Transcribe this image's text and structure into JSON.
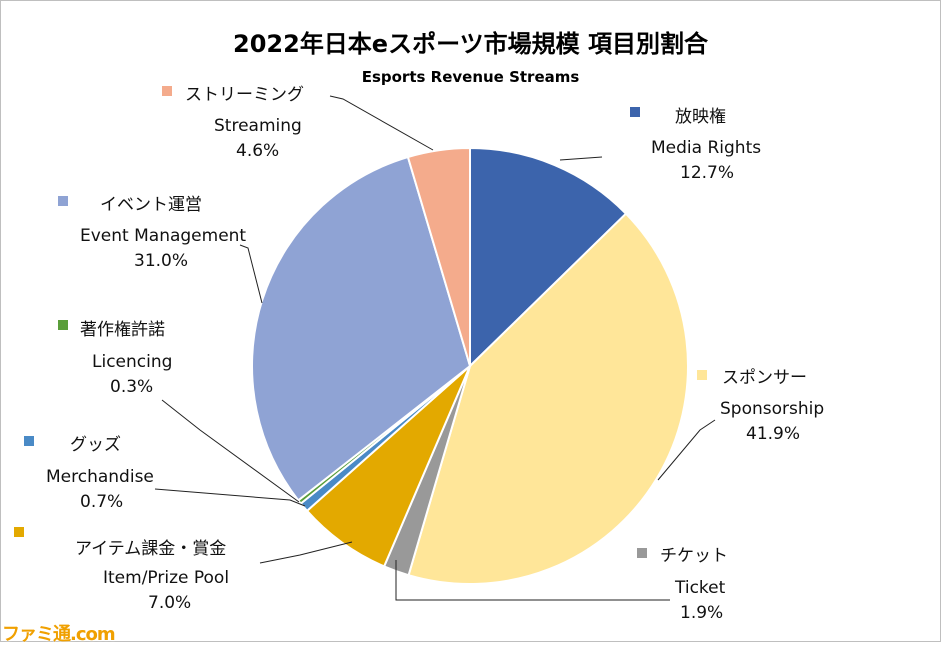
{
  "chart_data": {
    "type": "pie",
    "title": "2022年日本eスポーツ市場規模 項目別割合",
    "subtitle": "Esports Revenue Streams",
    "slices": [
      {
        "jp": "放映権",
        "en": "Media Rights",
        "value": 12.7,
        "pct_label": "12.7%",
        "color": "#3c64ac"
      },
      {
        "jp": "スポンサー",
        "en": "Sponsorship",
        "value": 41.9,
        "pct_label": "41.9%",
        "color": "#ffe699"
      },
      {
        "jp": "チケット",
        "en": "Ticket",
        "value": 1.9,
        "pct_label": "1.9%",
        "color": "#999999"
      },
      {
        "jp": "アイテム課金・賞金",
        "en": "Item/Prize Pool",
        "value": 7.0,
        "pct_label": "7.0%",
        "color": "#e3a900"
      },
      {
        "jp": "グッズ",
        "en": "Merchandise",
        "value": 0.7,
        "pct_label": "0.7%",
        "color": "#4a8ac6"
      },
      {
        "jp": "著作権許諾",
        "en": "Licencing",
        "value": 0.3,
        "pct_label": "0.3%",
        "color": "#5a9e3a"
      },
      {
        "jp": "イベント運営",
        "en": "Event Management",
        "value": 31.0,
        "pct_label": "31.0%",
        "color": "#8fa3d4"
      },
      {
        "jp": "ストリーミング",
        "en": "Streaming",
        "value": 4.6,
        "pct_label": "4.6%",
        "color": "#f4ab8c"
      }
    ],
    "start_angle": "12 o'clock",
    "direction": "clockwise",
    "legend": "none"
  },
  "watermark": "ファミ通.com"
}
